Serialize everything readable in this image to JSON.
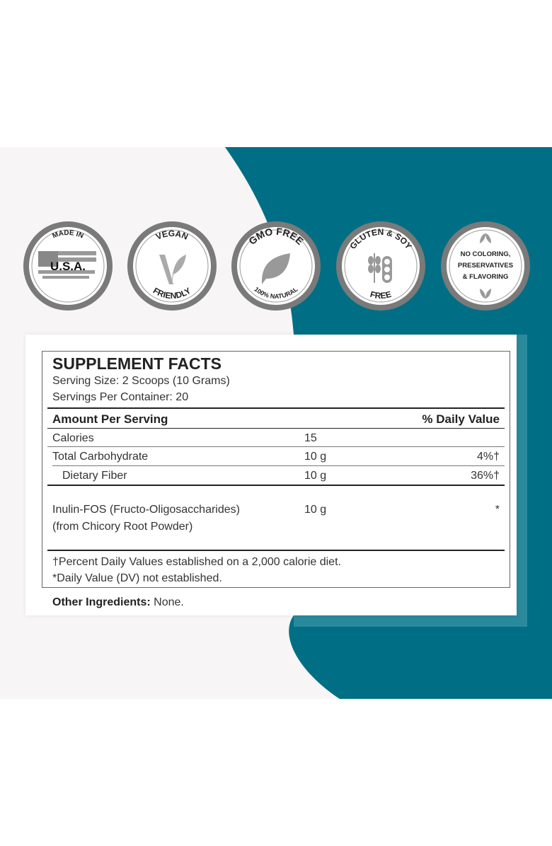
{
  "colors": {
    "teal": "#006f85",
    "teal_frame": "#2a8a9c",
    "background": "#f7f5f6",
    "badge_ring": "#7a7a7a"
  },
  "badges": [
    {
      "top": "MADE IN",
      "center": "U.S.A.",
      "icon": "usa-flag-map-icon"
    },
    {
      "top": "VEGAN",
      "bottom": "FRIENDLY",
      "icon": "v-leaf-icon"
    },
    {
      "top": "GMO FREE",
      "bottom": "100% NATURAL",
      "icon": "leaf-icon"
    },
    {
      "top": "GLUTEN & SOY",
      "bottom": "FREE",
      "icon": "wheat-soy-icon"
    },
    {
      "lines": [
        "NO COLORING,",
        "PRESERVATIVES",
        "& FLAVORING"
      ],
      "icon": "leaves-icon"
    }
  ],
  "facts": {
    "title": "SUPPLEMENT FACTS",
    "serving_size": "Serving Size: 2 Scoops (10 Grams)",
    "servings_per_container": "Servings Per Container: 20",
    "header_amount": "Amount Per Serving",
    "header_dv": "% Daily Value",
    "rows": [
      {
        "name": "Calories",
        "amount": "15",
        "dv": ""
      },
      {
        "name": "Total Carbohydrate",
        "amount": "10 g",
        "dv": "4%†"
      },
      {
        "name": "Dietary Fiber",
        "amount": "10 g",
        "dv": "36%†"
      },
      {
        "name": "Inulin-FOS (Fructo-Oligosaccharides)",
        "name2": "(from Chicory Root Powder)",
        "amount": "10 g",
        "dv": "*"
      }
    ],
    "footnote1": "†Percent Daily Values established on a 2,000 calorie diet.",
    "footnote2": "*Daily Value (DV) not established."
  },
  "other_ingredients": {
    "label": "Other Ingredients:",
    "value": " None."
  }
}
